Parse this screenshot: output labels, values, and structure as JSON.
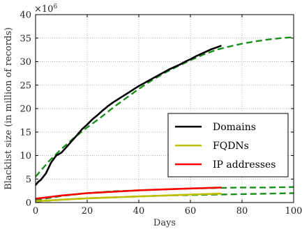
{
  "chart_data": {
    "type": "line",
    "title": "",
    "xlabel": "Days",
    "ylabel": "Blacklist size (in million of records)",
    "xlim": [
      0,
      100
    ],
    "ylim": [
      0,
      40
    ],
    "x_ticks": [
      "0",
      "20",
      "40",
      "60",
      "80",
      "100"
    ],
    "y_ticks": [
      "0",
      "5",
      "10",
      "15",
      "20",
      "25",
      "30",
      "35",
      "40"
    ],
    "y_multiplier_base": "×10",
    "y_multiplier_exp": "6",
    "grid": true,
    "legend_position": "center-right",
    "series": [
      {
        "name": "Domains",
        "color": "#000000",
        "style": "solid",
        "x": [
          0,
          1,
          2,
          4,
          6,
          8,
          10,
          12,
          14,
          16,
          18,
          20,
          22,
          24,
          26,
          28,
          30,
          32,
          34,
          36,
          38,
          40,
          42,
          44,
          46,
          48,
          50,
          52,
          54,
          56,
          58,
          60,
          62,
          64,
          66,
          68,
          70,
          72
        ],
        "values": [
          3.7,
          4.4,
          4.8,
          6.2,
          8.5,
          10.0,
          10.6,
          11.8,
          13.1,
          14.3,
          15.6,
          16.6,
          17.7,
          18.6,
          19.6,
          20.5,
          21.3,
          22.0,
          22.7,
          23.4,
          24.1,
          24.8,
          25.4,
          26.0,
          26.6,
          27.2,
          27.8,
          28.4,
          28.9,
          29.4,
          30.0,
          30.5,
          31.1,
          31.6,
          32.1,
          32.6,
          33.0,
          33.4
        ]
      },
      {
        "name": "FQDNs",
        "color": "#bfbf00",
        "style": "solid",
        "x": [
          0,
          10,
          20,
          30,
          40,
          50,
          60,
          72
        ],
        "values": [
          0.3,
          0.6,
          0.9,
          1.1,
          1.3,
          1.5,
          1.7,
          1.9
        ]
      },
      {
        "name": "IP addresses",
        "color": "#ff0000",
        "style": "solid",
        "x": [
          0,
          10,
          20,
          30,
          40,
          50,
          60,
          72
        ],
        "values": [
          0.8,
          1.5,
          2.0,
          2.3,
          2.6,
          2.8,
          3.0,
          3.2
        ]
      },
      {
        "color": "#1a8f1a",
        "style": "dashed",
        "x": [
          0,
          5,
          10,
          15,
          20,
          25,
          30,
          35,
          40,
          45,
          50,
          55,
          60,
          65,
          70,
          75,
          80,
          85,
          90,
          95,
          100
        ],
        "values": [
          5.5,
          8.7,
          11.4,
          13.8,
          16.0,
          18.0,
          20.2,
          22.2,
          24.2,
          26.0,
          27.6,
          29.0,
          30.3,
          31.5,
          32.5,
          33.2,
          33.8,
          34.3,
          34.7,
          35.0,
          35.2
        ]
      },
      {
        "color": "#1a8f1a",
        "style": "dashed",
        "x": [
          0,
          10,
          20,
          30,
          40,
          50,
          60,
          70,
          80,
          90,
          100
        ],
        "values": [
          0.5,
          1.4,
          2.0,
          2.4,
          2.6,
          2.8,
          3.0,
          3.1,
          3.2,
          3.2,
          3.3
        ]
      },
      {
        "color": "#1a8f1a",
        "style": "dashed",
        "x": [
          0,
          10,
          20,
          30,
          40,
          50,
          60,
          70,
          80,
          90,
          100
        ],
        "values": [
          0.2,
          0.6,
          0.9,
          1.1,
          1.3,
          1.5,
          1.6,
          1.7,
          1.8,
          1.9,
          2.0
        ]
      }
    ]
  }
}
